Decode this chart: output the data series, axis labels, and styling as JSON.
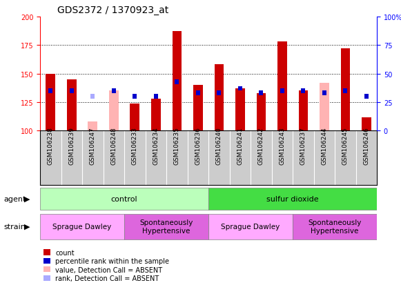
{
  "title": "GDS2372 / 1370923_at",
  "samples": [
    "GSM106238",
    "GSM106239",
    "GSM106247",
    "GSM106248",
    "GSM106233",
    "GSM106234",
    "GSM106235",
    "GSM106236",
    "GSM106240",
    "GSM106241",
    "GSM106242",
    "GSM106243",
    "GSM106237",
    "GSM106244",
    "GSM106245",
    "GSM106246"
  ],
  "count_values": [
    150,
    145,
    108,
    135,
    124,
    128,
    187,
    140,
    158,
    137,
    133,
    178,
    135,
    142,
    172,
    112
  ],
  "count_absent": [
    false,
    false,
    true,
    true,
    false,
    false,
    false,
    false,
    false,
    false,
    false,
    false,
    false,
    true,
    false,
    false
  ],
  "rank_values": [
    135,
    135,
    130,
    135,
    130,
    130,
    143,
    133,
    133,
    137,
    133,
    135,
    135,
    133,
    135,
    130
  ],
  "rank_absent": [
    false,
    false,
    true,
    false,
    false,
    false,
    false,
    false,
    false,
    false,
    false,
    false,
    false,
    false,
    false,
    false
  ],
  "ylim_left": [
    100,
    200
  ],
  "ylim_right": [
    0,
    100
  ],
  "yticks_left": [
    100,
    125,
    150,
    175,
    200
  ],
  "yticks_right": [
    0,
    25,
    50,
    75,
    100
  ],
  "dotted_lines": [
    125,
    150,
    175
  ],
  "color_count_present": "#cc0000",
  "color_count_absent": "#ffb3b3",
  "color_rank_present": "#0000cc",
  "color_rank_absent": "#aaaaff",
  "agent_groups": [
    {
      "label": "control",
      "start": 0,
      "end": 8,
      "color": "#bbffbb"
    },
    {
      "label": "sulfur dioxide",
      "start": 8,
      "end": 16,
      "color": "#44dd44"
    }
  ],
  "strain_groups": [
    {
      "label": "Sprague Dawley",
      "start": 0,
      "end": 4,
      "color": "#ffaaff"
    },
    {
      "label": "Spontaneously\nHypertensive",
      "start": 4,
      "end": 8,
      "color": "#dd66dd"
    },
    {
      "label": "Sprague Dawley",
      "start": 8,
      "end": 12,
      "color": "#ffaaff"
    },
    {
      "label": "Spontaneously\nHypertensive",
      "start": 12,
      "end": 16,
      "color": "#dd66dd"
    }
  ],
  "legend_items": [
    {
      "label": "count",
      "color": "#cc0000"
    },
    {
      "label": "percentile rank within the sample",
      "color": "#0000cc"
    },
    {
      "label": "value, Detection Call = ABSENT",
      "color": "#ffb3b3"
    },
    {
      "label": "rank, Detection Call = ABSENT",
      "color": "#aaaaff"
    }
  ],
  "xtick_bg_color": "#cccccc",
  "title_fontsize": 10,
  "tick_fontsize": 7,
  "xlabel_fontsize": 6.5,
  "annotation_fontsize": 8,
  "legend_fontsize": 7
}
